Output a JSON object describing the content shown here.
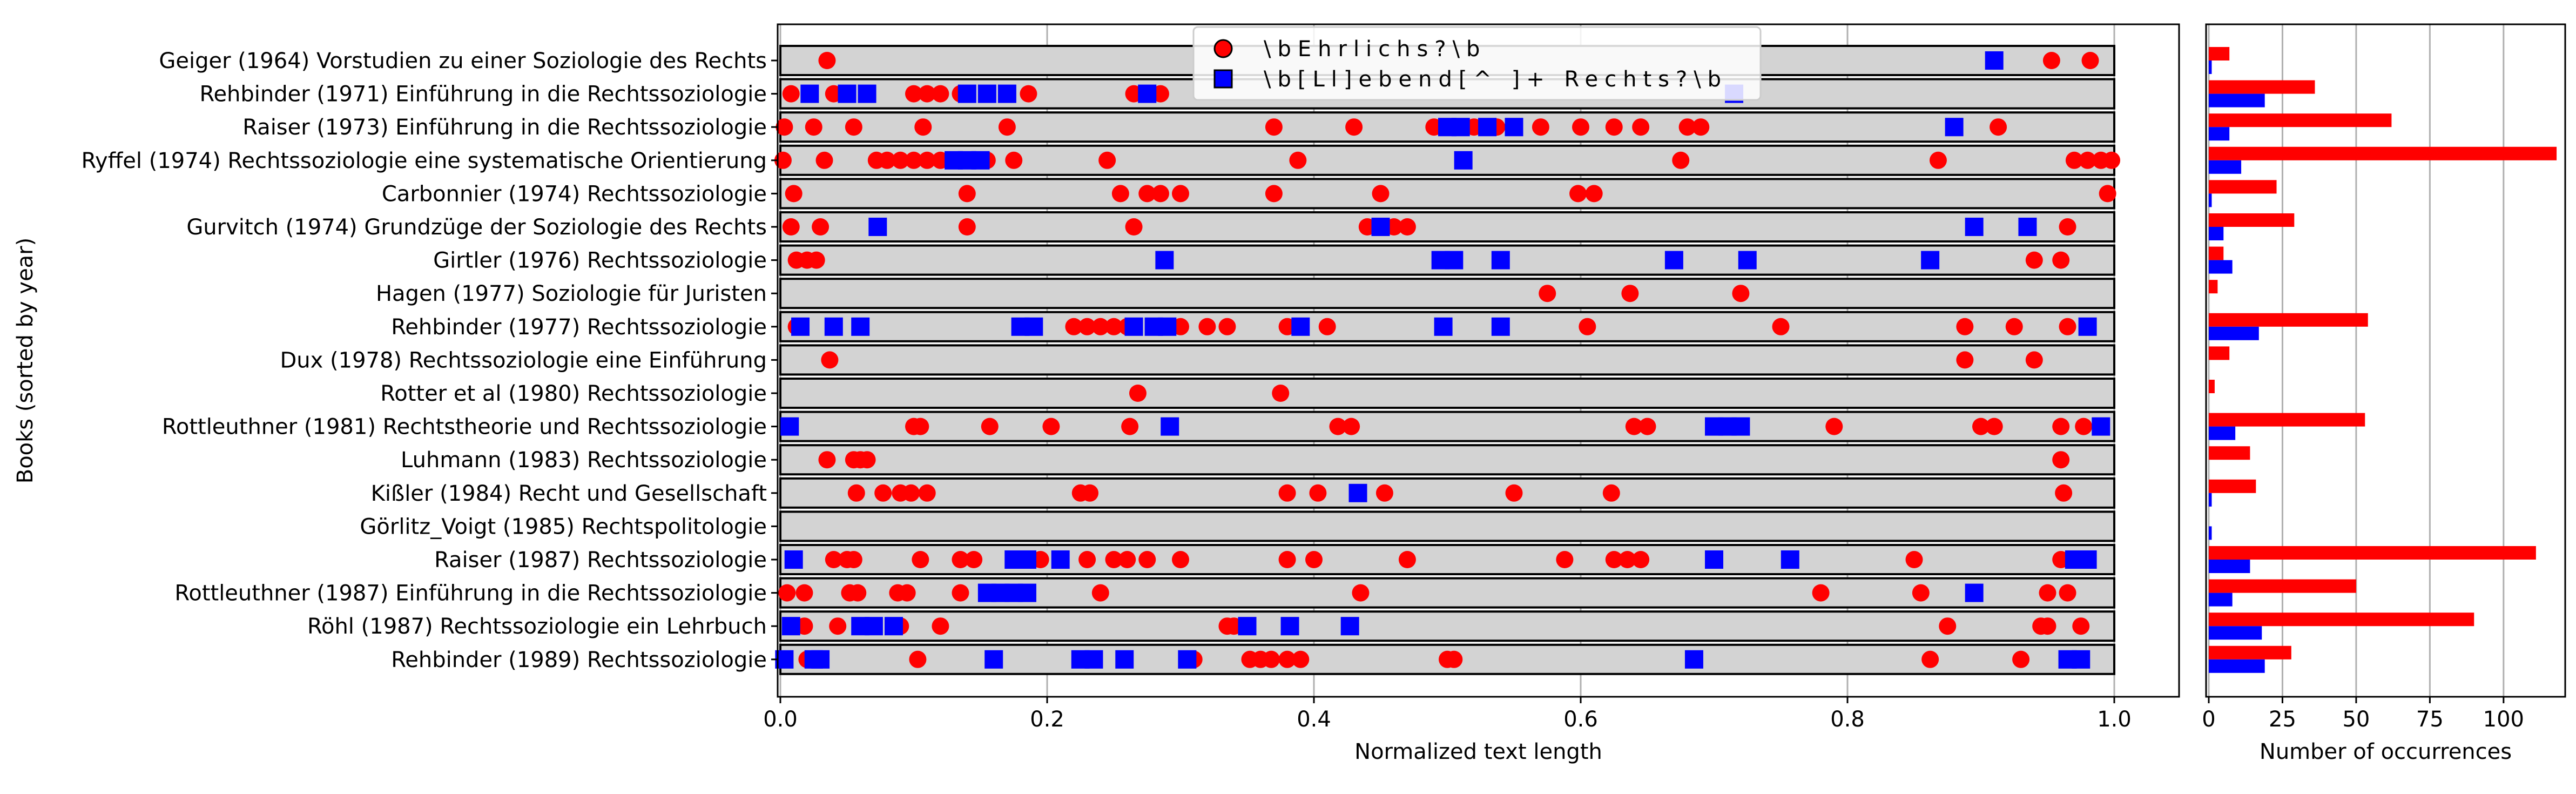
{
  "chart_data": [
    {
      "type": "scatter",
      "xlabel": "Normalized text length",
      "ylabel": "Books (sorted by year)",
      "xlim": [
        0.0,
        1.0
      ],
      "xticks": [
        "0.0",
        "0.2",
        "0.4",
        "0.6",
        "0.8",
        "1.0"
      ],
      "grid": "vertical",
      "legend_position": "top-center",
      "colors": {
        "ehrlich": "#ff0000",
        "lebend": "#0000ff",
        "band": "#d3d3d3"
      },
      "series": [
        {
          "name": "\\bEhrlichs?\\b",
          "marker": "circle",
          "color": "#ff0000"
        },
        {
          "name": "\\b[Ll]ebend[^ ]+ Rechts?\\b",
          "marker": "square",
          "color": "#0000ff"
        }
      ],
      "books": [
        {
          "label": "Geiger (1964) Vorstudien zu einer Soziologie des Rechts",
          "ehrlich": [
            0.035,
            0.953,
            0.982
          ],
          "lebend": [
            0.91
          ]
        },
        {
          "label": "Rehbinder (1971) Einführung in die Rechtssoziologie",
          "ehrlich": [
            0.008,
            0.04,
            0.1,
            0.11,
            0.12,
            0.135,
            0.186,
            0.265,
            0.285
          ],
          "lebend": [
            0.022,
            0.05,
            0.065,
            0.14,
            0.155,
            0.17,
            0.275,
            0.715
          ]
        },
        {
          "label": "Raiser (1973) Einführung in die Rechtssoziologie",
          "ehrlich": [
            0.003,
            0.025,
            0.055,
            0.107,
            0.17,
            0.37,
            0.43,
            0.49,
            0.52,
            0.537,
            0.57,
            0.6,
            0.625,
            0.645,
            0.68,
            0.69,
            0.913
          ],
          "lebend": [
            0.5,
            0.51,
            0.53,
            0.55,
            0.88
          ]
        },
        {
          "label": "Ryffel (1974) Rechtssoziologie eine systematische Orientierung",
          "ehrlich": [
            0.002,
            0.033,
            0.072,
            0.08,
            0.09,
            0.1,
            0.11,
            0.12,
            0.155,
            0.175,
            0.245,
            0.388,
            0.675,
            0.868,
            0.97,
            0.98,
            0.99,
            0.998
          ],
          "lebend": [
            0.13,
            0.14,
            0.15,
            0.512
          ]
        },
        {
          "label": "Carbonnier (1974) Rechtssoziologie",
          "ehrlich": [
            0.01,
            0.14,
            0.255,
            0.275,
            0.285,
            0.3,
            0.37,
            0.45,
            0.598,
            0.61,
            0.995
          ],
          "lebend": []
        },
        {
          "label": "Gurvitch (1974) Grundzüge der Soziologie des Rechts",
          "ehrlich": [
            0.008,
            0.03,
            0.14,
            0.265,
            0.44,
            0.46,
            0.47,
            0.965
          ],
          "lebend": [
            0.073,
            0.45,
            0.895,
            0.935
          ]
        },
        {
          "label": "Girtler (1976) Rechtssoziologie",
          "ehrlich": [
            0.012,
            0.02,
            0.027,
            0.94,
            0.96
          ],
          "lebend": [
            0.288,
            0.495,
            0.505,
            0.54,
            0.67,
            0.725,
            0.862
          ]
        },
        {
          "label": "Hagen (1977) Soziologie für Juristen",
          "ehrlich": [
            0.575,
            0.637,
            0.72
          ],
          "lebend": []
        },
        {
          "label": "Rehbinder (1977) Rechtssoziologie",
          "ehrlich": [
            0.012,
            0.22,
            0.23,
            0.24,
            0.25,
            0.26,
            0.28,
            0.3,
            0.32,
            0.335,
            0.38,
            0.41,
            0.605,
            0.75,
            0.888,
            0.925,
            0.965
          ],
          "lebend": [
            0.015,
            0.04,
            0.06,
            0.18,
            0.19,
            0.265,
            0.28,
            0.29,
            0.39,
            0.497,
            0.54,
            0.98
          ]
        },
        {
          "label": "Dux (1978) Rechtssoziologie eine Einführung",
          "ehrlich": [
            0.037,
            0.888,
            0.94
          ],
          "lebend": []
        },
        {
          "label": "Rotter et al (1980) Rechtssoziologie",
          "ehrlich": [
            0.268,
            0.375
          ],
          "lebend": []
        },
        {
          "label": "Rottleuthner (1981) Rechtstheorie und Rechtssoziologie",
          "ehrlich": [
            0.1,
            0.105,
            0.157,
            0.203,
            0.262,
            0.418,
            0.428,
            0.64,
            0.65,
            0.79,
            0.9,
            0.91,
            0.96,
            0.977
          ],
          "lebend": [
            0.007,
            0.292,
            0.7,
            0.71,
            0.72,
            0.99
          ]
        },
        {
          "label": "Luhmann (1983) Rechtssoziologie",
          "ehrlich": [
            0.035,
            0.055,
            0.06,
            0.065,
            0.96
          ],
          "lebend": []
        },
        {
          "label": "Kißler (1984) Recht und Gesellschaft",
          "ehrlich": [
            0.057,
            0.077,
            0.09,
            0.098,
            0.11,
            0.225,
            0.232,
            0.38,
            0.403,
            0.453,
            0.55,
            0.623,
            0.962
          ],
          "lebend": [
            0.433
          ]
        },
        {
          "label": "Görlitz_Voigt (1985) Rechtspolitologie",
          "ehrlich": [],
          "lebend": []
        },
        {
          "label": "Raiser (1987) Rechtssoziologie",
          "ehrlich": [
            0.04,
            0.05,
            0.055,
            0.105,
            0.135,
            0.145,
            0.195,
            0.23,
            0.25,
            0.26,
            0.275,
            0.3,
            0.38,
            0.4,
            0.47,
            0.588,
            0.625,
            0.635,
            0.645,
            0.85,
            0.96
          ],
          "lebend": [
            0.01,
            0.175,
            0.185,
            0.21,
            0.7,
            0.757,
            0.97,
            0.98
          ]
        },
        {
          "label": "Rottleuthner (1987) Einführung in die Rechtssoziologie",
          "ehrlich": [
            0.005,
            0.018,
            0.052,
            0.058,
            0.088,
            0.095,
            0.135,
            0.24,
            0.435,
            0.78,
            0.855,
            0.95,
            0.965
          ],
          "lebend": [
            0.155,
            0.165,
            0.175,
            0.185,
            0.895
          ]
        },
        {
          "label": "Röhl (1987) Rechtssoziologie ein Lehrbuch",
          "ehrlich": [
            0.018,
            0.043,
            0.09,
            0.12,
            0.335,
            0.34,
            0.875,
            0.945,
            0.95,
            0.975
          ],
          "lebend": [
            0.008,
            0.06,
            0.07,
            0.085,
            0.35,
            0.382,
            0.427
          ]
        },
        {
          "label": "Rehbinder (1989) Rechtssoziologie",
          "ehrlich": [
            0.02,
            0.103,
            0.31,
            0.352,
            0.36,
            0.368,
            0.38,
            0.39,
            0.5,
            0.505,
            0.862,
            0.93
          ],
          "lebend": [
            0.003,
            0.025,
            0.03,
            0.16,
            0.225,
            0.235,
            0.258,
            0.305,
            0.685,
            0.965,
            0.975
          ]
        }
      ]
    },
    {
      "type": "bar",
      "orientation": "horizontal",
      "xlabel": "Number of occurrences",
      "xlim": [
        0,
        120
      ],
      "xticks": [
        "0",
        "25",
        "50",
        "75",
        "100"
      ],
      "grid": "vertical",
      "categories": [
        "Geiger (1964)",
        "Rehbinder (1971)",
        "Raiser (1973)",
        "Ryffel (1974)",
        "Carbonnier (1974)",
        "Gurvitch (1974)",
        "Girtler (1976)",
        "Hagen (1977)",
        "Rehbinder (1977)",
        "Dux (1978)",
        "Rotter et al (1980)",
        "Rottleuthner (1981)",
        "Luhmann (1983)",
        "Kißler (1984)",
        "Görlitz_Voigt (1985)",
        "Raiser (1987)",
        "Rottleuthner (1987)",
        "Röhl (1987)",
        "Rehbinder (1989)"
      ],
      "series": [
        {
          "color": "#ff0000",
          "values": [
            7,
            36,
            62,
            118,
            23,
            29,
            5,
            3,
            54,
            7,
            2,
            53,
            14,
            16,
            0,
            111,
            50,
            90,
            28
          ]
        },
        {
          "color": "#0000ff",
          "values": [
            1,
            19,
            7,
            11,
            1,
            5,
            8,
            0,
            17,
            0,
            0,
            9,
            0,
            1,
            1,
            14,
            8,
            18,
            19
          ]
        }
      ]
    }
  ]
}
